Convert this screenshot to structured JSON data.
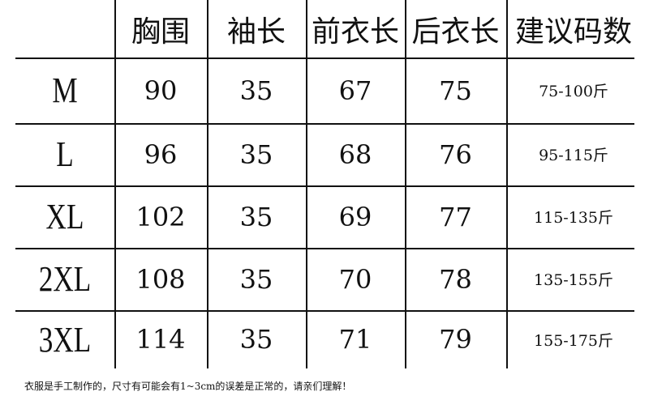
{
  "headers": [
    "胸围",
    "袖长",
    "前衣长",
    "后衣长",
    "建议码数"
  ],
  "rows": [
    {
      "size": "M",
      "chest": "90",
      "sleeve": "35",
      "front_length": "67",
      "back_length": "75",
      "recommended": "75-100斤"
    },
    {
      "size": "L",
      "chest": "96",
      "sleeve": "35",
      "front_length": "68",
      "back_length": "76",
      "recommended": "95-115斤"
    },
    {
      "size": "XL",
      "chest": "102",
      "sleeve": "35",
      "front_length": "69",
      "back_length": "77",
      "recommended": "115-135斤"
    },
    {
      "size": "2XL",
      "chest": "108",
      "sleeve": "35",
      "front_length": "70",
      "back_length": "78",
      "recommended": "135-155斤"
    },
    {
      "size": "3XL",
      "chest": "114",
      "sleeve": "35",
      "front_length": "71",
      "back_length": "79",
      "recommended": "155-175斤"
    }
  ],
  "footnote": "衣服是手工制作的，尺寸有可能会有1~3cm的误差是正常的，请亲们理解！"
}
